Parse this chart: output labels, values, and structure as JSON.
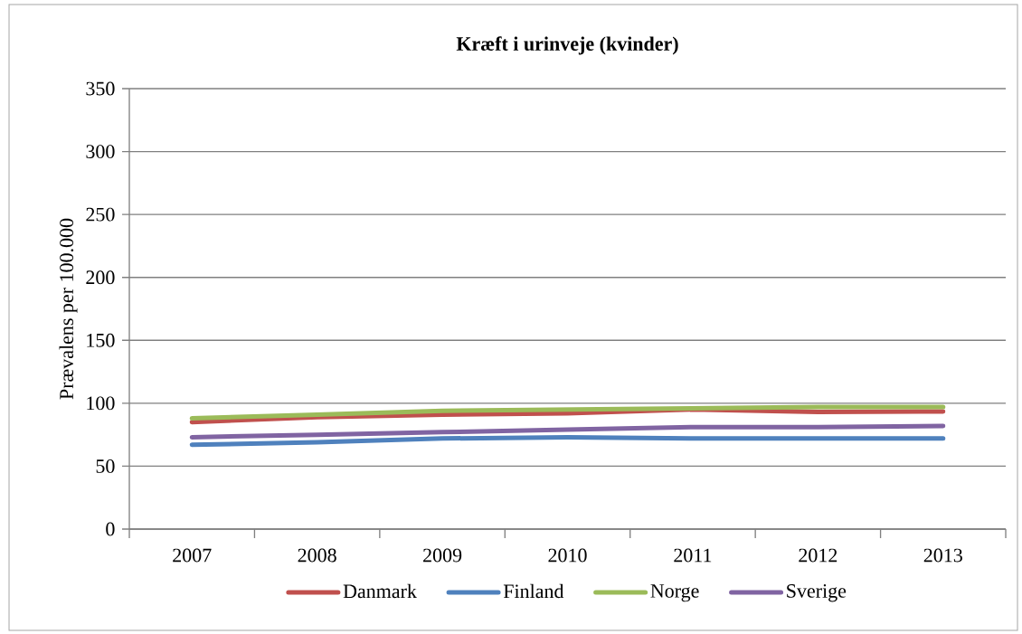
{
  "chart_data": {
    "type": "line",
    "title": "Kræft i urinveje (kvinder)",
    "ylabel": "Prævalens per 100.000",
    "categories": [
      "2007",
      "2008",
      "2009",
      "2010",
      "2011",
      "2012",
      "2013"
    ],
    "series": [
      {
        "name": "Danmark",
        "color": "#c0504d",
        "values": [
          85,
          89,
          91,
          92,
          95,
          93,
          93.5
        ]
      },
      {
        "name": "Finland",
        "color": "#4f81bd",
        "values": [
          67,
          69,
          72,
          73,
          72,
          72,
          72
        ]
      },
      {
        "name": "Norge",
        "color": "#9bbb59",
        "values": [
          88,
          91,
          94,
          95,
          96,
          97,
          97
        ]
      },
      {
        "name": "Sverige",
        "color": "#8064a2",
        "values": [
          73,
          75,
          77,
          79,
          81,
          81,
          82
        ]
      }
    ],
    "ylim": [
      0,
      350
    ],
    "yticks": [
      0,
      50,
      100,
      150,
      200,
      250,
      300,
      350
    ],
    "grid": "y",
    "legend": "bottom",
    "marker": "none",
    "line_style": "solid"
  }
}
